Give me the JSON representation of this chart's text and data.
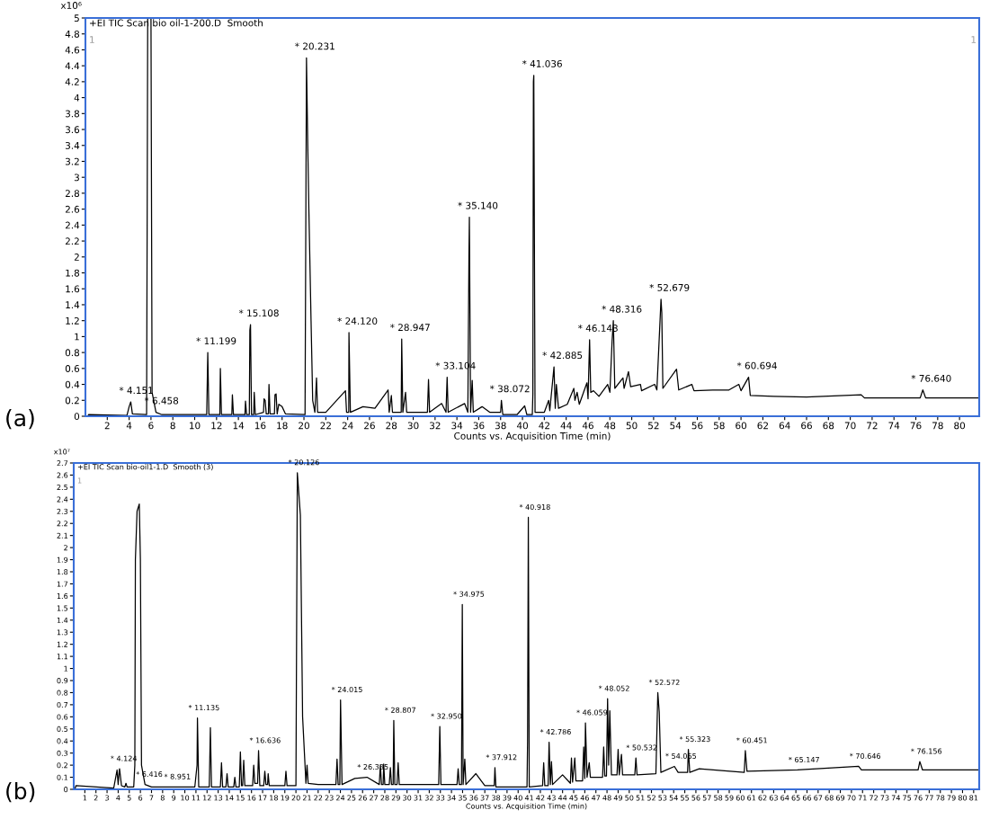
{
  "chart_data": [
    {
      "type": "line",
      "title": "+EI TIC Scan bio oil-1-200.D  Smooth",
      "xlabel": "Counts vs. Acquisition Time (min)",
      "ylabel": "x10⁶",
      "xlim": [
        0,
        81.8
      ],
      "ylim": [
        0,
        5
      ],
      "xticks": [
        2,
        4,
        6,
        8,
        10,
        12,
        14,
        16,
        18,
        20,
        22,
        24,
        26,
        28,
        30,
        32,
        34,
        36,
        38,
        40,
        42,
        44,
        46,
        48,
        50,
        52,
        54,
        56,
        58,
        60,
        62,
        64,
        66,
        68,
        70,
        72,
        74,
        76,
        78,
        80
      ],
      "yticks": [
        0,
        0.2,
        0.4,
        0.6,
        0.8,
        1,
        1.2,
        1.4,
        1.6,
        1.8,
        2,
        2.2,
        2.4,
        2.6,
        2.8,
        3,
        3.2,
        3.4,
        3.6,
        3.8,
        4,
        4.2,
        4.4,
        4.6,
        4.8,
        5
      ],
      "series": [
        {
          "color": "#000000",
          "x": [
            0.2,
            0.3,
            3.8,
            4.0,
            4.151,
            4.3,
            5.6,
            5.65,
            5.7,
            6.0,
            6.1,
            6.458,
            7,
            11.1,
            11.199,
            11.3,
            12.3,
            12.35,
            12.45,
            13.4,
            13.45,
            13.55,
            14.6,
            14.65,
            14.75,
            15.0,
            15.05,
            15.108,
            15.2,
            15.4,
            15.45,
            15.55,
            16.3,
            16.35,
            16.45,
            16.55,
            16.75,
            16.8,
            16.9,
            17.3,
            17.35,
            17.45,
            17.55,
            17.7,
            18.0,
            18.3,
            20.1,
            20.2,
            20.231,
            20.35,
            20.45,
            20.55,
            20.65,
            20.8,
            21.0,
            21.15,
            21.25,
            22,
            23.8,
            23.9,
            24.1,
            24.12,
            24.25,
            25.4,
            26.5,
            27.7,
            27.8,
            28.0,
            28.1,
            28.9,
            28.947,
            29.05,
            29.3,
            29.4,
            31.3,
            31.4,
            31.5,
            32.6,
            33.0,
            33.104,
            33.2,
            34.7,
            35.0,
            35.1,
            35.14,
            35.25,
            35.4,
            35.5,
            36.3,
            37,
            38.0,
            38.072,
            38.2,
            39.5,
            40.2,
            40.4,
            40.9,
            40.95,
            41.0,
            41.036,
            41.15,
            42.0,
            42.4,
            42.5,
            42.885,
            43.0,
            43.1,
            43.3,
            44.1,
            44.7,
            44.8,
            45.0,
            45.2,
            45.9,
            46.0,
            46.143,
            46.25,
            46.5,
            47.0,
            47.8,
            48.0,
            48.2,
            48.316,
            48.45,
            49.2,
            49.3,
            49.7,
            49.9,
            50.8,
            50.9,
            52.1,
            52.3,
            52.679,
            52.75,
            52.85,
            54.1,
            54.3,
            55.5,
            55.7,
            57.4,
            58.9,
            59.8,
            60.0,
            60.694,
            60.85,
            63,
            66,
            71.0,
            71.3,
            76.4,
            76.64,
            76.9,
            81.8
          ],
          "values": [
            0,
            0.02,
            0.01,
            0.12,
            0.18,
            0.03,
            0.02,
            2.4,
            5,
            5,
            0.3,
            0.05,
            0.02,
            0.02,
            0.8,
            0.02,
            0.02,
            0.6,
            0.02,
            0.02,
            0.27,
            0.02,
            0.02,
            0.19,
            0.02,
            0.02,
            1.08,
            1.15,
            0.02,
            0.02,
            0.3,
            0.02,
            0.05,
            0.22,
            0.2,
            0.03,
            0.03,
            0.4,
            0.03,
            0.03,
            0.27,
            0.28,
            0.03,
            0.15,
            0.12,
            0.03,
            0.02,
            3.4,
            4.5,
            3.4,
            2.6,
            1.9,
            1.2,
            0.2,
            0.05,
            0.48,
            0.05,
            0.05,
            0.32,
            0.05,
            0.05,
            1.05,
            0.05,
            0.12,
            0.1,
            0.33,
            0.05,
            0.26,
            0.05,
            0.05,
            0.97,
            0.05,
            0.3,
            0.05,
            0.05,
            0.46,
            0.05,
            0.16,
            0.05,
            0.49,
            0.05,
            0.16,
            0.05,
            2.0,
            2.5,
            0.05,
            0.45,
            0.05,
            0.12,
            0.05,
            0.05,
            0.2,
            0.02,
            0.02,
            0.13,
            0.02,
            0.02,
            0.28,
            4.2,
            4.28,
            0.05,
            0.05,
            0.2,
            0.07,
            0.62,
            0.1,
            0.4,
            0.1,
            0.15,
            0.35,
            0.2,
            0.3,
            0.15,
            0.42,
            0.22,
            0.96,
            0.3,
            0.32,
            0.25,
            0.4,
            0.3,
            0.94,
            1.2,
            0.35,
            0.48,
            0.35,
            0.56,
            0.37,
            0.4,
            0.32,
            0.4,
            0.33,
            1.47,
            1.3,
            0.35,
            0.59,
            0.33,
            0.4,
            0.32,
            0.33,
            0.33,
            0.4,
            0.32,
            0.49,
            0.26,
            0.25,
            0.24,
            0.27,
            0.23,
            0.23,
            0.33,
            0.23,
            0.23
          ]
        }
      ],
      "annotations": [
        "(a)",
        "1",
        "1",
        {
          "text": "* 4.151",
          "x": 4.151,
          "y": 0.18
        },
        {
          "text": "* 6.458",
          "x": 6.458,
          "y": 0.05
        },
        {
          "text": "* 11.199",
          "x": 11.199,
          "y": 0.8
        },
        {
          "text": "* 15.108",
          "x": 15.108,
          "y": 1.15
        },
        {
          "text": "* 20.231",
          "x": 20.231,
          "y": 4.5
        },
        {
          "text": "* 24.120",
          "x": 24.12,
          "y": 1.05
        },
        {
          "text": "* 28.947",
          "x": 28.947,
          "y": 0.97
        },
        {
          "text": "* 33.104",
          "x": 33.104,
          "y": 0.49
        },
        {
          "text": "* 35.140",
          "x": 35.14,
          "y": 2.5
        },
        {
          "text": "* 38.072",
          "x": 38.072,
          "y": 0.2
        },
        {
          "text": "* 41.036",
          "x": 41.036,
          "y": 4.28
        },
        {
          "text": "* 42.885",
          "x": 42.885,
          "y": 0.62
        },
        {
          "text": "* 46.143",
          "x": 46.143,
          "y": 0.96
        },
        {
          "text": "* 48.316",
          "x": 48.316,
          "y": 1.2
        },
        {
          "text": "* 52.679",
          "x": 52.679,
          "y": 1.47
        },
        {
          "text": "* 60.694",
          "x": 60.694,
          "y": 0.49
        },
        {
          "text": "* 76.640",
          "x": 76.64,
          "y": 0.33
        }
      ]
    },
    {
      "type": "line",
      "title": "+EI TIC Scan bio-oil1-1.D  Smooth (3)",
      "xlabel": "Counts vs. Acquisition Time (min)",
      "ylabel": "x10⁷",
      "xlim": [
        0,
        81.5
      ],
      "ylim": [
        0,
        2.7
      ],
      "xticks": [
        1,
        2,
        3,
        4,
        5,
        6,
        7,
        8,
        9,
        10,
        11,
        12,
        13,
        14,
        15,
        16,
        17,
        18,
        19,
        20,
        21,
        22,
        23,
        24,
        25,
        26,
        27,
        28,
        29,
        30,
        31,
        32,
        33,
        34,
        35,
        36,
        37,
        38,
        39,
        40,
        41,
        42,
        43,
        44,
        45,
        46,
        47,
        48,
        49,
        50,
        51,
        52,
        53,
        54,
        55,
        56,
        57,
        58,
        59,
        60,
        61,
        62,
        63,
        64,
        65,
        66,
        67,
        68,
        69,
        70,
        71,
        72,
        73,
        74,
        75,
        76,
        77,
        78,
        79,
        80,
        81
      ],
      "yticks": [
        0,
        0.1,
        0.2,
        0.3,
        0.4,
        0.5,
        0.6,
        0.7,
        0.8,
        0.9,
        1,
        1.1,
        1.2,
        1.3,
        1.4,
        1.5,
        1.6,
        1.7,
        1.8,
        1.9,
        2,
        2.1,
        2.2,
        2.3,
        2.4,
        2.5,
        2.6,
        2.7
      ],
      "series": [
        {
          "color": "#000000",
          "x": [
            0.1,
            0.2,
            3.6,
            3.9,
            4.0,
            4.1,
            4.124,
            4.3,
            4.6,
            4.7,
            4.8,
            5.4,
            5.5,
            5.55,
            5.7,
            5.9,
            6.0,
            6.1,
            6.416,
            7,
            10.9,
            11.1,
            11.135,
            11.25,
            12.2,
            12.3,
            12.4,
            13.2,
            13.3,
            13.4,
            13.7,
            13.8,
            13.9,
            14.4,
            14.5,
            14.6,
            14.9,
            15.0,
            15.1,
            15.2,
            15.3,
            15.4,
            16.1,
            16.2,
            16.3,
            16.55,
            16.636,
            16.75,
            17.1,
            17.2,
            17.3,
            17.45,
            17.5,
            17.6,
            18.0,
            19.0,
            19.1,
            19.2,
            20.0,
            20.126,
            20.4,
            20.6,
            20.9,
            21.0,
            21.1,
            22,
            23.6,
            23.7,
            23.8,
            23.95,
            24.015,
            24.15,
            25.3,
            26.4,
            27.5,
            27.6,
            27.7,
            27.85,
            27.9,
            28.0,
            28.4,
            28.5,
            28.6,
            28.75,
            28.807,
            28.9,
            29.1,
            29.2,
            29.3,
            32.85,
            32.95,
            33.05,
            34.5,
            34.6,
            34.7,
            34.9,
            34.975,
            35.05,
            35.2,
            35.3,
            36.2,
            37.0,
            37.85,
            37.912,
            38.0,
            40.8,
            40.85,
            40.918,
            41.0,
            42.2,
            42.3,
            42.4,
            42.7,
            42.786,
            42.9,
            43.0,
            43.1,
            44.0,
            44.7,
            44.8,
            44.9,
            45.1,
            45.2,
            45.8,
            45.9,
            46.0,
            46.059,
            46.2,
            46.4,
            46.5,
            47.6,
            47.7,
            47.8,
            47.95,
            48.052,
            48.15,
            48.25,
            48.4,
            48.9,
            49.0,
            49.1,
            49.3,
            49.4,
            50.5,
            50.6,
            50.7,
            52.4,
            52.572,
            52.7,
            52.85,
            54.065,
            54.4,
            55.25,
            55.323,
            55.45,
            56.3,
            60.35,
            60.451,
            60.6,
            65.147,
            70.646,
            70.9,
            76.0,
            76.156,
            76.4,
            81.5
          ],
          "values": [
            0,
            0.03,
            0.01,
            0.16,
            0.04,
            0.16,
            0.17,
            0.03,
            0.02,
            0.05,
            0.02,
            0.02,
            0.2,
            1.9,
            2.3,
            2.36,
            1.9,
            0.2,
            0.04,
            0.02,
            0.02,
            0.2,
            0.59,
            0.02,
            0.02,
            0.51,
            0.02,
            0.02,
            0.22,
            0.02,
            0.02,
            0.13,
            0.02,
            0.02,
            0.1,
            0.02,
            0.02,
            0.31,
            0.03,
            0.03,
            0.24,
            0.03,
            0.03,
            0.2,
            0.05,
            0.05,
            0.32,
            0.03,
            0.03,
            0.15,
            0.04,
            0.04,
            0.13,
            0.03,
            0.03,
            0.03,
            0.15,
            0.03,
            0.03,
            2.62,
            2.27,
            0.6,
            0.05,
            0.2,
            0.05,
            0.04,
            0.04,
            0.25,
            0.04,
            0.04,
            0.74,
            0.04,
            0.09,
            0.1,
            0.04,
            0.2,
            0.04,
            0.04,
            0.21,
            0.04,
            0.04,
            0.18,
            0.04,
            0.04,
            0.57,
            0.04,
            0.04,
            0.22,
            0.04,
            0.04,
            0.52,
            0.04,
            0.04,
            0.17,
            0.04,
            0.04,
            1.53,
            0.04,
            0.25,
            0.04,
            0.13,
            0.03,
            0.03,
            0.18,
            0.02,
            0.02,
            0.4,
            2.25,
            0.02,
            0.03,
            0.22,
            0.03,
            0.03,
            0.39,
            0.04,
            0.23,
            0.04,
            0.12,
            0.05,
            0.26,
            0.06,
            0.26,
            0.07,
            0.07,
            0.35,
            0.09,
            0.55,
            0.1,
            0.22,
            0.1,
            0.1,
            0.35,
            0.11,
            0.11,
            0.75,
            0.2,
            0.65,
            0.12,
            0.12,
            0.33,
            0.12,
            0.29,
            0.12,
            0.12,
            0.26,
            0.12,
            0.13,
            0.8,
            0.64,
            0.14,
            0.19,
            0.14,
            0.14,
            0.33,
            0.14,
            0.17,
            0.14,
            0.32,
            0.15,
            0.16,
            0.19,
            0.16,
            0.16,
            0.23,
            0.16,
            0.16
          ]
        }
      ],
      "annotations": [
        "(b)",
        "1",
        {
          "text": "* 4.124",
          "x": 4.124,
          "y": 0.17
        },
        {
          "text": "* 6.416",
          "x": 6.416,
          "y": 0.04
        },
        {
          "text": "* 8.951",
          "x": 8.951,
          "y": 0.02
        },
        {
          "text": "* 11.135",
          "x": 11.135,
          "y": 0.59
        },
        {
          "text": "* 16.636",
          "x": 16.636,
          "y": 0.32
        },
        {
          "text": "* 20.126",
          "x": 20.126,
          "y": 2.62
        },
        {
          "text": "* 24.015",
          "x": 24.015,
          "y": 0.74
        },
        {
          "text": "* 26.335",
          "x": 26.335,
          "y": 0.1
        },
        {
          "text": "* 28.807",
          "x": 28.807,
          "y": 0.57
        },
        {
          "text": "* 32.950",
          "x": 32.95,
          "y": 0.52
        },
        {
          "text": "* 34.975",
          "x": 34.975,
          "y": 1.53
        },
        {
          "text": "* 37.912",
          "x": 37.912,
          "y": 0.18
        },
        {
          "text": "* 40.918",
          "x": 40.918,
          "y": 2.25
        },
        {
          "text": "* 42.786",
          "x": 42.786,
          "y": 0.39
        },
        {
          "text": "* 46.059",
          "x": 46.059,
          "y": 0.55
        },
        {
          "text": "* 48.052",
          "x": 48.052,
          "y": 0.75
        },
        {
          "text": "* 50.532",
          "x": 50.532,
          "y": 0.26
        },
        {
          "text": "* 52.572",
          "x": 52.572,
          "y": 0.8
        },
        {
          "text": "* 54.065",
          "x": 54.065,
          "y": 0.19
        },
        {
          "text": "* 55.323",
          "x": 55.323,
          "y": 0.33
        },
        {
          "text": "* 60.451",
          "x": 60.451,
          "y": 0.32
        },
        {
          "text": "* 65.147",
          "x": 65.147,
          "y": 0.16
        },
        {
          "text": "* 70.646",
          "x": 70.646,
          "y": 0.19
        },
        {
          "text": "* 76.156",
          "x": 76.156,
          "y": 0.23
        }
      ]
    }
  ]
}
